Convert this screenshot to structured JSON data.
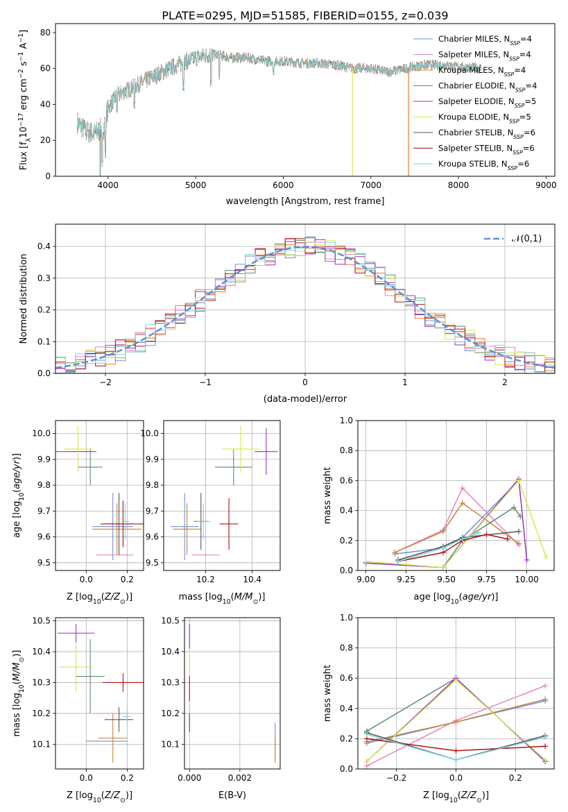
{
  "page": {
    "title": "PLATE=0295, MJD=51585, FIBERID=0155, z=0.039"
  },
  "colors": {
    "Chabrier MILES": "#6f8fd9",
    "Salpeter MILES": "#e884c0",
    "Kroupa MILES": "#c8843a",
    "Chabrier ELODIE": "#5f8a6f",
    "Salpeter ELODIE": "#9a2fc0",
    "Kroupa ELODIE": "#d6e84e",
    "Chabrier STELIB": "#555555",
    "Salpeter STELIB": "#b01010",
    "Kroupa STELIB": "#7dd3de",
    "orange": "#e8782e",
    "normal": "#5b8fd9"
  },
  "chart_data": [
    {
      "id": "spectrum",
      "type": "line",
      "title": "PLATE=0295, MJD=51585, FIBERID=0155, z=0.039",
      "xlabel": "wavelength [Angstrom, rest frame]",
      "ylabel": "Flux [fλ10⁻¹⁷ erg cm⁻² s⁻¹ A⁻¹]",
      "xlim": [
        3400,
        9100
      ],
      "ylim": [
        0,
        85
      ],
      "xticks": [
        4000,
        5000,
        6000,
        7000,
        8000,
        9000
      ],
      "yticks": [
        0,
        20,
        40,
        60,
        80
      ],
      "legend_placement": "top-right",
      "legend": [
        {
          "label": "Chabrier MILES, N",
          "sub": "SSP",
          "suffix": "=4"
        },
        {
          "label": "Salpeter MILES, N",
          "sub": "SSP",
          "suffix": "=4"
        },
        {
          "label": "Kroupa MILES, N",
          "sub": "SSP",
          "suffix": "=4"
        },
        {
          "label": "Chabrier ELODIE, N",
          "sub": "SSP",
          "suffix": "=4"
        },
        {
          "label": "Salpeter ELODIE, N",
          "sub": "SSP",
          "suffix": "=5"
        },
        {
          "label": "Kroupa ELODIE, N",
          "sub": "SSP",
          "suffix": "=5"
        },
        {
          "label": "Chabrier STELIB, N",
          "sub": "SSP",
          "suffix": "=6"
        },
        {
          "label": "Salpeter STELIB, N",
          "sub": "SSP",
          "suffix": "=6"
        },
        {
          "label": "Kroupa STELIB, N",
          "sub": "SSP",
          "suffix": "=6"
        }
      ],
      "continuum": [
        [
          3650,
          30
        ],
        [
          3750,
          25
        ],
        [
          3850,
          24
        ],
        [
          3950,
          27
        ],
        [
          4000,
          38
        ],
        [
          4100,
          45
        ],
        [
          4300,
          50
        ],
        [
          4500,
          55
        ],
        [
          4700,
          60
        ],
        [
          4850,
          63
        ],
        [
          5000,
          66
        ],
        [
          5200,
          68
        ],
        [
          5400,
          66
        ],
        [
          5600,
          66
        ],
        [
          5800,
          64
        ],
        [
          6000,
          64
        ],
        [
          6200,
          63
        ],
        [
          6400,
          63
        ],
        [
          6600,
          62
        ],
        [
          6800,
          60
        ],
        [
          7000,
          60
        ],
        [
          7200,
          58
        ],
        [
          7400,
          60
        ],
        [
          7600,
          62
        ],
        [
          7800,
          62
        ],
        [
          8000,
          61
        ],
        [
          8250,
          60
        ]
      ],
      "absorption_features": [
        [
          3934,
          5
        ],
        [
          3969,
          10
        ],
        [
          4102,
          35
        ],
        [
          4300,
          38
        ],
        [
          4861,
          48
        ],
        [
          5175,
          50
        ],
        [
          5270,
          52
        ],
        [
          5890,
          55
        ],
        [
          6563,
          60
        ],
        [
          8498,
          45
        ],
        [
          8542,
          44
        ],
        [
          8662,
          46
        ]
      ],
      "dropouts": [
        [
          3910,
          "Chabrier ELODIE"
        ],
        [
          6790,
          "Kroupa ELODIE"
        ],
        [
          7430,
          "orange"
        ]
      ]
    },
    {
      "id": "residuals",
      "type": "bar",
      "xlabel": "(data-model)/error",
      "ylabel": "Normed distribution",
      "xlim": [
        -2.5,
        2.5
      ],
      "ylim": [
        0,
        0.47
      ],
      "xticks": [
        -2,
        -1,
        0,
        1,
        2
      ],
      "yticks": [
        0.0,
        0.1,
        0.2,
        0.3,
        0.4
      ],
      "legend": [
        {
          "label": "𝒩(0,1)"
        }
      ],
      "legend_placement": "top-right",
      "gaussian": {
        "mu": 0,
        "sigma": 1
      }
    },
    {
      "id": "age-vs-Z",
      "type": "scatter",
      "xlabel": "Z [log₁₀(Z/Z⊙)]",
      "ylabel": "age  [log₁₀(age/yr)]",
      "xlim": [
        -0.15,
        0.28
      ],
      "ylim": [
        9.47,
        10.05
      ],
      "xticks": [
        0.0,
        0.2
      ],
      "yticks": [
        9.5,
        9.6,
        9.7,
        9.8,
        9.9,
        10.0
      ],
      "points": [
        {
          "s": "Chabrier MILES",
          "x": 0.13,
          "y": 9.64,
          "xe": 0.1,
          "ye": 0.13
        },
        {
          "s": "Salpeter MILES",
          "x": 0.14,
          "y": 9.53,
          "xe": 0.09,
          "ye": 0.0
        },
        {
          "s": "Kroupa MILES",
          "x": 0.15,
          "y": 9.63,
          "xe": 0.12,
          "ye": 0.1
        },
        {
          "s": "Chabrier ELODIE",
          "x": 0.02,
          "y": 9.87,
          "xe": 0.06,
          "ye": 0.07
        },
        {
          "s": "Salpeter ELODIE",
          "x": -0.05,
          "y": 9.93,
          "xe": 0.1,
          "ye": 0.0
        },
        {
          "s": "Kroupa ELODIE",
          "x": -0.04,
          "y": 9.94,
          "xe": 0.07,
          "ye": 0.09
        },
        {
          "s": "Chabrier STELIB",
          "x": 0.16,
          "y": 9.65,
          "xe": 0.07,
          "ye": 0.12
        },
        {
          "s": "Salpeter STELIB",
          "x": 0.18,
          "y": 9.65,
          "xe": 0.11,
          "ye": 0.09
        },
        {
          "s": "Kroupa STELIB",
          "x": 0.19,
          "y": 9.66,
          "xe": 0.02,
          "ye": 0.07
        }
      ]
    },
    {
      "id": "age-vs-mass",
      "type": "scatter",
      "xlabel": "mass [log₁₀(M/M⊙)]",
      "xlim": [
        10.02,
        10.52
      ],
      "ylim": [
        9.47,
        10.05
      ],
      "xticks": [
        10.2,
        10.4
      ],
      "yticks": [
        9.5,
        9.6,
        9.7,
        9.8,
        9.9,
        10.0
      ],
      "points": [
        {
          "s": "Chabrier MILES",
          "x": 10.11,
          "y": 9.64,
          "xe": 0.06,
          "ye": 0.13
        },
        {
          "s": "Salpeter MILES",
          "x": 10.2,
          "y": 9.53,
          "xe": 0.06,
          "ye": 0.0
        },
        {
          "s": "Kroupa MILES",
          "x": 10.12,
          "y": 9.63,
          "xe": 0.06,
          "ye": 0.1
        },
        {
          "s": "Chabrier ELODIE",
          "x": 10.32,
          "y": 9.87,
          "xe": 0.08,
          "ye": 0.07
        },
        {
          "s": "Salpeter ELODIE",
          "x": 10.46,
          "y": 9.93,
          "xe": 0.05,
          "ye": 0.09
        },
        {
          "s": "Kroupa ELODIE",
          "x": 10.35,
          "y": 9.94,
          "xe": 0.08,
          "ye": 0.09
        },
        {
          "s": "Chabrier STELIB",
          "x": 10.18,
          "y": 9.66,
          "xe": 0.03,
          "ye": 0.11
        },
        {
          "s": "Salpeter STELIB",
          "x": 10.3,
          "y": 9.65,
          "xe": 0.04,
          "ye": 0.1
        },
        {
          "s": "Kroupa STELIB",
          "x": 10.19,
          "y": 9.66,
          "xe": 0.03,
          "ye": 0.07
        }
      ]
    },
    {
      "id": "weight-vs-age",
      "type": "line",
      "xlabel": "age  [log₁₀(age/yr)]",
      "ylabel": "mass weight",
      "xlim": [
        8.95,
        10.17
      ],
      "ylim": [
        0,
        1.0
      ],
      "xticks": [
        9.0,
        9.25,
        9.5,
        9.75,
        10.0
      ],
      "yticks": [
        0.0,
        0.2,
        0.4,
        0.6,
        0.8,
        1.0
      ],
      "series": [
        {
          "s": "Chabrier MILES",
          "x": [
            9.18,
            9.48,
            9.6,
            9.95
          ],
          "y": [
            0.11,
            0.15,
            0.22,
            0.6
          ]
        },
        {
          "s": "Salpeter MILES",
          "x": [
            9.18,
            9.48,
            9.6,
            9.95
          ],
          "y": [
            0.12,
            0.27,
            0.55,
            0.17
          ]
        },
        {
          "s": "Kroupa MILES",
          "x": [
            9.18,
            9.48,
            9.6,
            9.95
          ],
          "y": [
            0.12,
            0.26,
            0.45,
            0.18
          ]
        },
        {
          "s": "Chabrier ELODIE",
          "x": [
            9.0,
            9.48,
            9.6,
            9.92,
            9.96
          ],
          "y": [
            0.05,
            0.02,
            0.2,
            0.42,
            0.36
          ]
        },
        {
          "s": "Salpeter ELODIE",
          "x": [
            9.0,
            9.48,
            9.95,
            10.0
          ],
          "y": [
            0.05,
            0.02,
            0.61,
            0.07
          ]
        },
        {
          "s": "Kroupa ELODIE",
          "x": [
            9.0,
            9.48,
            9.95,
            10.12
          ],
          "y": [
            0.06,
            0.02,
            0.6,
            0.09
          ]
        },
        {
          "s": "Chabrier STELIB",
          "x": [
            9.2,
            9.48,
            9.6,
            9.95
          ],
          "y": [
            0.07,
            0.16,
            0.22,
            0.26
          ]
        },
        {
          "s": "Salpeter STELIB",
          "x": [
            9.2,
            9.48,
            9.6,
            9.75,
            9.88
          ],
          "y": [
            0.06,
            0.12,
            0.2,
            0.24,
            0.21
          ]
        },
        {
          "s": "Kroupa STELIB",
          "x": [
            9.2,
            9.48,
            9.6,
            9.7
          ],
          "y": [
            0.06,
            0.15,
            0.21,
            0.25
          ]
        }
      ]
    },
    {
      "id": "mass-vs-Z",
      "type": "scatter",
      "xlabel": "Z [log₁₀(Z/Z⊙)]",
      "ylabel": "mass [log₁₀(M/M⊙)]",
      "xlim": [
        -0.15,
        0.28
      ],
      "ylim": [
        10.02,
        10.51
      ],
      "xticks": [
        0.0,
        0.2
      ],
      "yticks": [
        10.1,
        10.2,
        10.3,
        10.4,
        10.5
      ],
      "points": [
        {
          "s": "Chabrier MILES",
          "x": 0.1,
          "y": 10.11,
          "xe": 0.1,
          "ye": 0.0
        },
        {
          "s": "Salpeter MILES",
          "x": 0.12,
          "y": 10.2,
          "xe": 0.09,
          "ye": 0.0
        },
        {
          "s": "Kroupa MILES",
          "x": 0.13,
          "y": 10.12,
          "xe": 0.07,
          "ye": 0.08
        },
        {
          "s": "Chabrier ELODIE",
          "x": 0.02,
          "y": 10.32,
          "xe": 0.07,
          "ye": 0.12
        },
        {
          "s": "Salpeter ELODIE",
          "x": -0.05,
          "y": 10.46,
          "xe": 0.09,
          "ye": 0.03
        },
        {
          "s": "Kroupa ELODIE",
          "x": -0.05,
          "y": 10.35,
          "xe": 0.08,
          "ye": 0.08
        },
        {
          "s": "Chabrier STELIB",
          "x": 0.16,
          "y": 10.18,
          "xe": 0.07,
          "ye": 0.04
        },
        {
          "s": "Salpeter STELIB",
          "x": 0.18,
          "y": 10.3,
          "xe": 0.1,
          "ye": 0.03
        },
        {
          "s": "Kroupa STELIB",
          "x": 0.2,
          "y": 10.19,
          "xe": 0.02,
          "ye": 0.03
        }
      ]
    },
    {
      "id": "mass-vs-ebv",
      "type": "scatter",
      "xlabel": "E(B-V)",
      "xlim": [
        -0.0002,
        0.0036
      ],
      "ylim": [
        10.02,
        10.51
      ],
      "xticks": [
        0.0,
        0.002
      ],
      "yticks": [
        10.1,
        10.2,
        10.3,
        10.4,
        10.5
      ],
      "points": [
        {
          "s": "Chabrier MILES",
          "x": 0.0034,
          "y": 10.11,
          "xe": 0,
          "ye": 0.06
        },
        {
          "s": "Kroupa MILES",
          "x": 0.0034,
          "y": 10.08,
          "xe": 0,
          "ye": 0.04
        },
        {
          "s": "Salpeter ELODIE",
          "x": 0.0,
          "y": 10.45,
          "xe": 0,
          "ye": 0.04
        },
        {
          "s": "Kroupa ELODIE",
          "x": 0.0,
          "y": 10.37,
          "xe": 0,
          "ye": 0.04
        },
        {
          "s": "Salpeter STELIB",
          "x": 0.0,
          "y": 10.28,
          "xe": 0,
          "ye": 0.04
        },
        {
          "s": "Kroupa STELIB",
          "x": 0.0,
          "y": 10.19,
          "xe": 0,
          "ye": 0.04
        },
        {
          "s": "Chabrier STELIB",
          "x": 0.0,
          "y": 10.17,
          "xe": 0,
          "ye": 0.03
        }
      ]
    },
    {
      "id": "weight-vs-Z",
      "type": "line",
      "xlabel": "Z [log₁₀(Z/Z⊙)]",
      "ylabel": "mass weight",
      "xlim": [
        -0.33,
        0.33
      ],
      "ylim": [
        0,
        1.0
      ],
      "xticks": [
        -0.2,
        0.0,
        0.2
      ],
      "yticks": [
        0.0,
        0.2,
        0.4,
        0.6,
        0.8,
        1.0
      ],
      "series": [
        {
          "s": "Chabrier MILES",
          "x": [
            -0.3,
            0.0,
            0.3
          ],
          "y": [
            0.17,
            0.31,
            0.45
          ]
        },
        {
          "s": "Salpeter MILES",
          "x": [
            -0.3,
            0.0,
            0.3
          ],
          "y": [
            0.02,
            0.32,
            0.55
          ]
        },
        {
          "s": "Kroupa MILES",
          "x": [
            -0.3,
            0.0,
            0.3
          ],
          "y": [
            0.18,
            0.31,
            0.46
          ]
        },
        {
          "s": "Chabrier ELODIE",
          "x": [
            -0.3,
            0.0,
            0.3
          ],
          "y": [
            0.25,
            0.6,
            0.05
          ]
        },
        {
          "s": "Salpeter ELODIE",
          "x": [
            -0.3,
            0.0,
            0.3
          ],
          "y": [
            0.05,
            0.6,
            0.05
          ]
        },
        {
          "s": "Kroupa ELODIE",
          "x": [
            -0.3,
            0.0,
            0.3
          ],
          "y": [
            0.05,
            0.59,
            0.06
          ]
        },
        {
          "s": "Chabrier STELIB",
          "x": [
            -0.3,
            0.0,
            0.3
          ],
          "y": [
            0.24,
            0.06,
            0.22
          ]
        },
        {
          "s": "Salpeter STELIB",
          "x": [
            -0.3,
            0.0,
            0.3
          ],
          "y": [
            0.2,
            0.12,
            0.15
          ]
        },
        {
          "s": "Kroupa STELIB",
          "x": [
            -0.3,
            0.0,
            0.3
          ],
          "y": [
            0.23,
            0.06,
            0.21
          ]
        }
      ]
    }
  ]
}
